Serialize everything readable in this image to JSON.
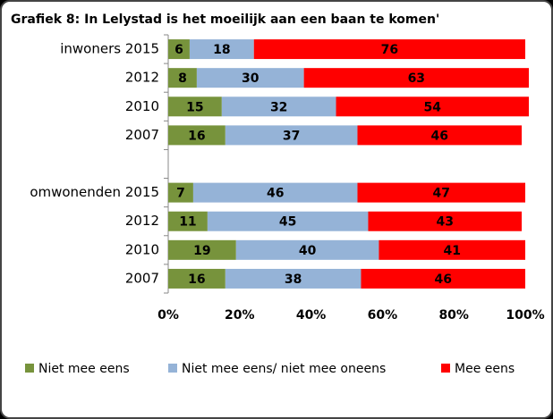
{
  "chart_data": {
    "type": "stacked-bar-horizontal",
    "title": "Grafiek 8: In Lelystad is het moeilijk aan een baan te komen'",
    "categories": [
      "inwoners 2015",
      "2012",
      "2010",
      "2007",
      null,
      "omwonenden 2015",
      "2012",
      "2010",
      "2007"
    ],
    "series": [
      {
        "name": "Niet mee eens",
        "color": "#77933c",
        "values": [
          6,
          8,
          15,
          16,
          null,
          7,
          11,
          19,
          16
        ]
      },
      {
        "name": "Niet mee eens/ niet mee oneens",
        "color": "#95b3d7",
        "values": [
          18,
          30,
          32,
          37,
          null,
          46,
          45,
          40,
          38
        ]
      },
      {
        "name": "Mee eens",
        "color": "#ff0000",
        "values": [
          76,
          63,
          54,
          46,
          null,
          47,
          43,
          41,
          46
        ]
      }
    ],
    "xlim": [
      0,
      100
    ],
    "xticks": [
      {
        "value": 0,
        "label": "0%"
      },
      {
        "value": 20,
        "label": "20%"
      },
      {
        "value": 40,
        "label": "40%"
      },
      {
        "value": 60,
        "label": "60%"
      },
      {
        "value": 80,
        "label": "80%"
      },
      {
        "value": 100,
        "label": "100%"
      }
    ],
    "legend": "bottom"
  }
}
